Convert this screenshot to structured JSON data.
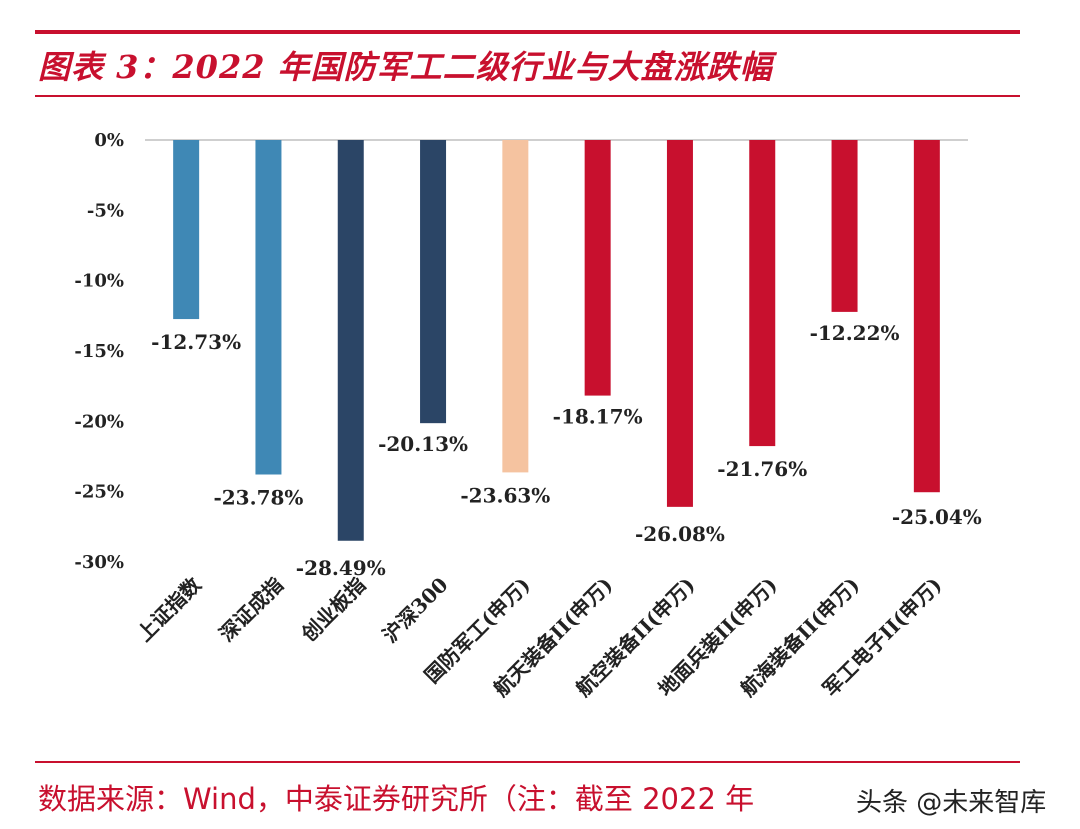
{
  "header": {
    "title": "图表 3：2022 年国防军工二级行业与大盘涨跌幅"
  },
  "footer": {
    "source": "数据来源：Wind，中泰证券研究所（注：截至 2022 年",
    "watermark": "头条 @未来智库"
  },
  "colors": {
    "accent": "#c8102e",
    "light_blue": "#3f88b5",
    "dark_navy": "#2b4566",
    "peach": "#f5c3a0",
    "red": "#c8102e"
  },
  "chart_data": {
    "type": "bar",
    "title": "2022 年国防军工二级行业与大盘涨跌幅",
    "xlabel": "",
    "ylabel": "",
    "ylim": [
      -30,
      0
    ],
    "yticks": [
      0,
      -5,
      -10,
      -15,
      -20,
      -25,
      -30
    ],
    "ytick_labels": [
      "0%",
      "-5%",
      "-10%",
      "-15%",
      "-20%",
      "-25%",
      "-30%"
    ],
    "categories": [
      "上证指数",
      "深证成指",
      "创业板指",
      "沪深300",
      "国防军工(申万)",
      "航天装备II(申万)",
      "航空装备II(申万)",
      "地面兵装II(申万)",
      "航海装备II(申万)",
      "军工电子II(申万)"
    ],
    "values": [
      -12.73,
      -23.78,
      -28.49,
      -20.13,
      -23.63,
      -18.17,
      -26.08,
      -21.76,
      -12.22,
      -25.04
    ],
    "data_labels": [
      "-12.73%",
      "-23.78%",
      "-28.49%",
      "-20.13%",
      "-23.63%",
      "-18.17%",
      "-26.08%",
      "-21.76%",
      "-12.22%",
      "-25.04%"
    ],
    "bar_colors": [
      "#3f88b5",
      "#3f88b5",
      "#2b4566",
      "#2b4566",
      "#f5c3a0",
      "#c8102e",
      "#c8102e",
      "#c8102e",
      "#c8102e",
      "#c8102e"
    ],
    "grid": false,
    "legend": "none"
  }
}
